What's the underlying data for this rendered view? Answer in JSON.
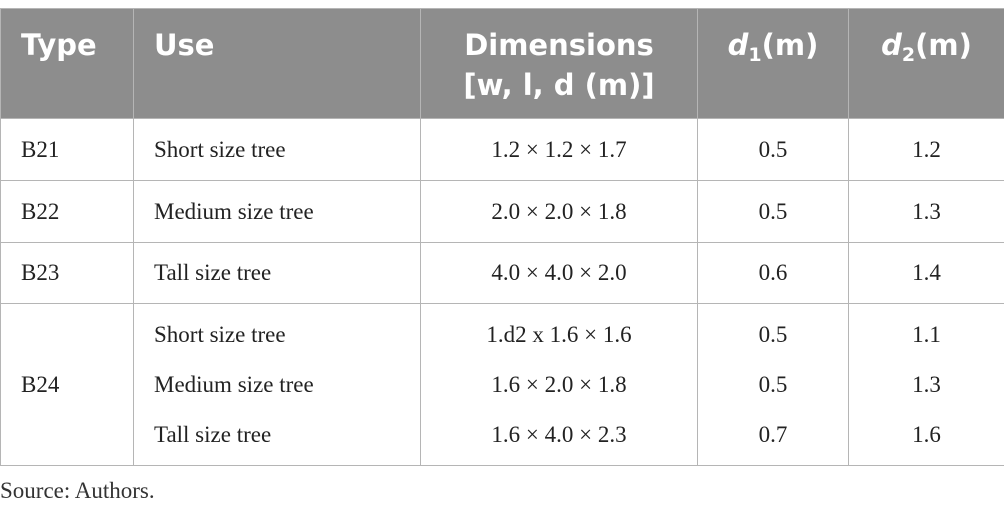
{
  "table": {
    "header": [
      "Type",
      "Use",
      {
        "lines": [
          "Dimensions",
          "[w, l, d (m)]"
        ]
      },
      {
        "symbol": "d",
        "subscript": "1",
        "unit": "(m)"
      },
      {
        "symbol": "d",
        "subscript": "2",
        "unit": "(m)"
      }
    ],
    "rows": [
      {
        "type": "B21",
        "items": [
          {
            "use": "Short size tree",
            "dimensions": "1.2 × 1.2 × 1.7",
            "d1": 0.5,
            "d2": 1.2
          }
        ]
      },
      {
        "type": "B22",
        "items": [
          {
            "use": "Medium size tree",
            "dimensions": "2.0 × 2.0 × 1.8",
            "d1": 0.5,
            "d2": 1.3
          }
        ]
      },
      {
        "type": "B23",
        "items": [
          {
            "use": "Tall size tree",
            "dimensions": "4.0 × 4.0 × 2.0",
            "d1": 0.6,
            "d2": 1.4
          }
        ]
      },
      {
        "type": "B24",
        "items": [
          {
            "use": "Short size tree",
            "dimensions": "1.d2 x 1.6 × 1.6",
            "d1": 0.5,
            "d2": 1.1
          },
          {
            "use": "Medium size tree",
            "dimensions": "1.6 × 2.0 × 1.8",
            "d1": 0.5,
            "d2": 1.3
          },
          {
            "use": "Tall size tree",
            "dimensions": "1.6 × 4.0 × 2.3",
            "d1": 0.7,
            "d2": 1.6
          }
        ]
      }
    ]
  },
  "footer": "Source: Authors."
}
